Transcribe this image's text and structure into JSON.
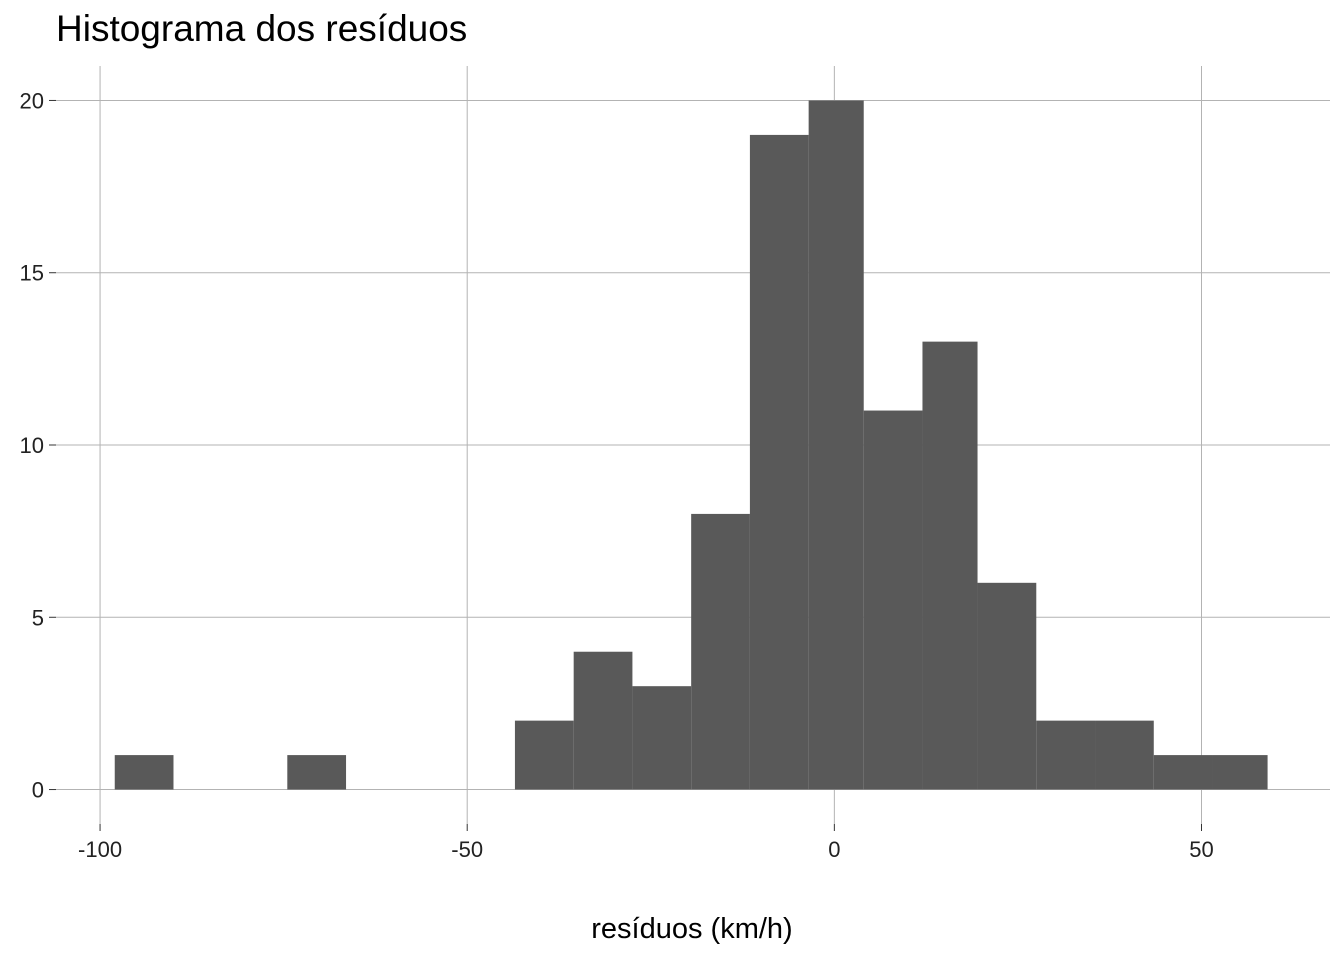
{
  "chart_data": {
    "type": "bar",
    "title": "Histograma dos resíduos",
    "xlabel": "resíduos (km/h)",
    "ylabel": "",
    "bins": [
      {
        "x0": -98,
        "x1": -90,
        "count": 1
      },
      {
        "x0": -74.5,
        "x1": -66.5,
        "count": 1
      },
      {
        "x0": -43.5,
        "x1": -35.5,
        "count": 2
      },
      {
        "x0": -35.5,
        "x1": -27.5,
        "count": 4
      },
      {
        "x0": -27.5,
        "x1": -19.5,
        "count": 3
      },
      {
        "x0": -19.5,
        "x1": -11.5,
        "count": 8
      },
      {
        "x0": -11.5,
        "x1": -3.5,
        "count": 19
      },
      {
        "x0": -3.5,
        "x1": 4,
        "count": 20
      },
      {
        "x0": 4,
        "x1": 12,
        "count": 11
      },
      {
        "x0": 12,
        "x1": 19.5,
        "count": 13
      },
      {
        "x0": 19.5,
        "x1": 27.5,
        "count": 6
      },
      {
        "x0": 27.5,
        "x1": 35.5,
        "count": 2
      },
      {
        "x0": 35.5,
        "x1": 43.5,
        "count": 2
      },
      {
        "x0": 43.5,
        "x1": 51.5,
        "count": 1
      },
      {
        "x0": 51.5,
        "x1": 59,
        "count": 1
      }
    ],
    "xlim": [
      -106,
      67.5
    ],
    "ylim": [
      -1,
      21
    ],
    "x_ticks": [
      {
        "value": -100,
        "label": "-100"
      },
      {
        "value": -50,
        "label": "-50"
      },
      {
        "value": 0,
        "label": "0"
      },
      {
        "value": 50,
        "label": "50"
      }
    ],
    "y_ticks": [
      {
        "value": 0,
        "label": "0"
      },
      {
        "value": 5,
        "label": "5"
      },
      {
        "value": 10,
        "label": "10"
      },
      {
        "value": 15,
        "label": "15"
      },
      {
        "value": 20,
        "label": "20"
      }
    ],
    "grid": true,
    "colors": {
      "bar": "#595959",
      "grid": "#b3b3b3",
      "background": "#ffffff"
    }
  }
}
